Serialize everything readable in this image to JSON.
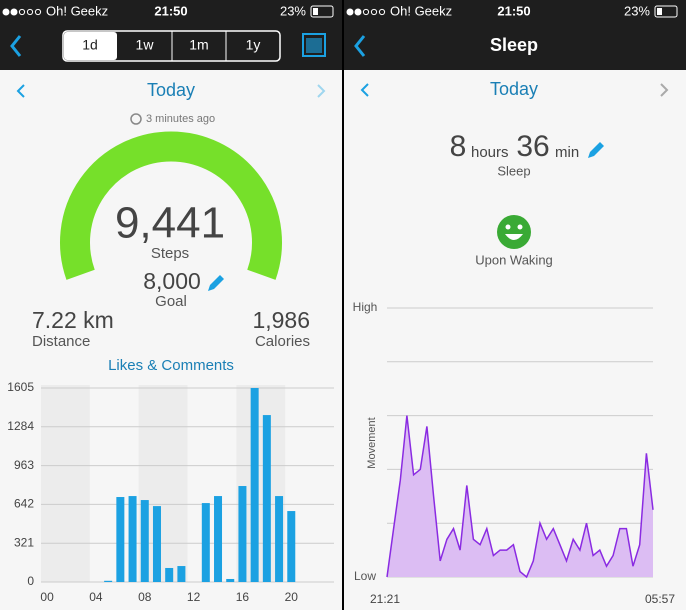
{
  "left": {
    "status": {
      "carrier": "Oh! Geekz",
      "time": "21:50",
      "battery": "23%"
    },
    "tabs": [
      "1d",
      "1w",
      "1m",
      "1y"
    ],
    "date": "Today",
    "updated": "3 minutes ago",
    "steps": {
      "value": "9,441",
      "label": "Steps"
    },
    "goal": {
      "value": "8,000",
      "label": "Goal"
    },
    "distance": {
      "value": "7.22 km",
      "label": "Distance"
    },
    "calories": {
      "value": "1,986",
      "label": "Calories"
    },
    "chart": {
      "type": "bar",
      "title": "Likes & Comments",
      "categories": [
        "00",
        null,
        null,
        null,
        "04",
        null,
        null,
        null,
        "08",
        null,
        null,
        null,
        "12",
        null,
        null,
        null,
        "16",
        null,
        null,
        null,
        "20",
        null,
        null,
        null
      ],
      "values": [
        0,
        0,
        0,
        0,
        0,
        10,
        703,
        711,
        678,
        628,
        116,
        132,
        0,
        653,
        711,
        25,
        794,
        1605,
        1381,
        711,
        587,
        0,
        0,
        0
      ],
      "color": "#1ba1e2",
      "ylim": [
        0,
        1605
      ],
      "yticks": [
        0,
        321,
        642,
        963,
        1284,
        1605
      ],
      "grid": true
    }
  },
  "right": {
    "status": {
      "carrier": "Oh! Geekz",
      "time": "21:50",
      "battery": "23%"
    },
    "title": "Sleep",
    "date": "Today",
    "duration": {
      "hours": "8",
      "hours_unit": "hours",
      "minutes": "36",
      "minutes_unit": "min",
      "label": "Sleep"
    },
    "mood": "Upon Waking",
    "chart": {
      "type": "area",
      "y_label": "Movement",
      "x_labels": [
        "21:21",
        "05:57"
      ],
      "values": [
        0,
        0.9,
        1.8,
        3.0,
        1.9,
        2.0,
        2.8,
        1.5,
        0.3,
        0.7,
        0.9,
        0.5,
        1.7,
        0.7,
        0.6,
        0.9,
        0.4,
        0.5,
        0.5,
        0.6,
        0.1,
        0,
        0.3,
        1.0,
        0.7,
        0.9,
        0.6,
        0.3,
        0.7,
        0.5,
        1.0,
        0.4,
        0.5,
        0.2,
        0.4,
        0.9,
        0.9,
        0.2,
        0.6,
        2.3,
        1.25
      ],
      "color": "#8a2be2",
      "ylim": [
        0,
        5
      ],
      "yticks": [
        {
          "value": 0,
          "label": "Low"
        },
        {
          "value": 5,
          "label": "High"
        }
      ],
      "grid_lines": [
        1,
        2,
        3,
        4
      ]
    }
  }
}
